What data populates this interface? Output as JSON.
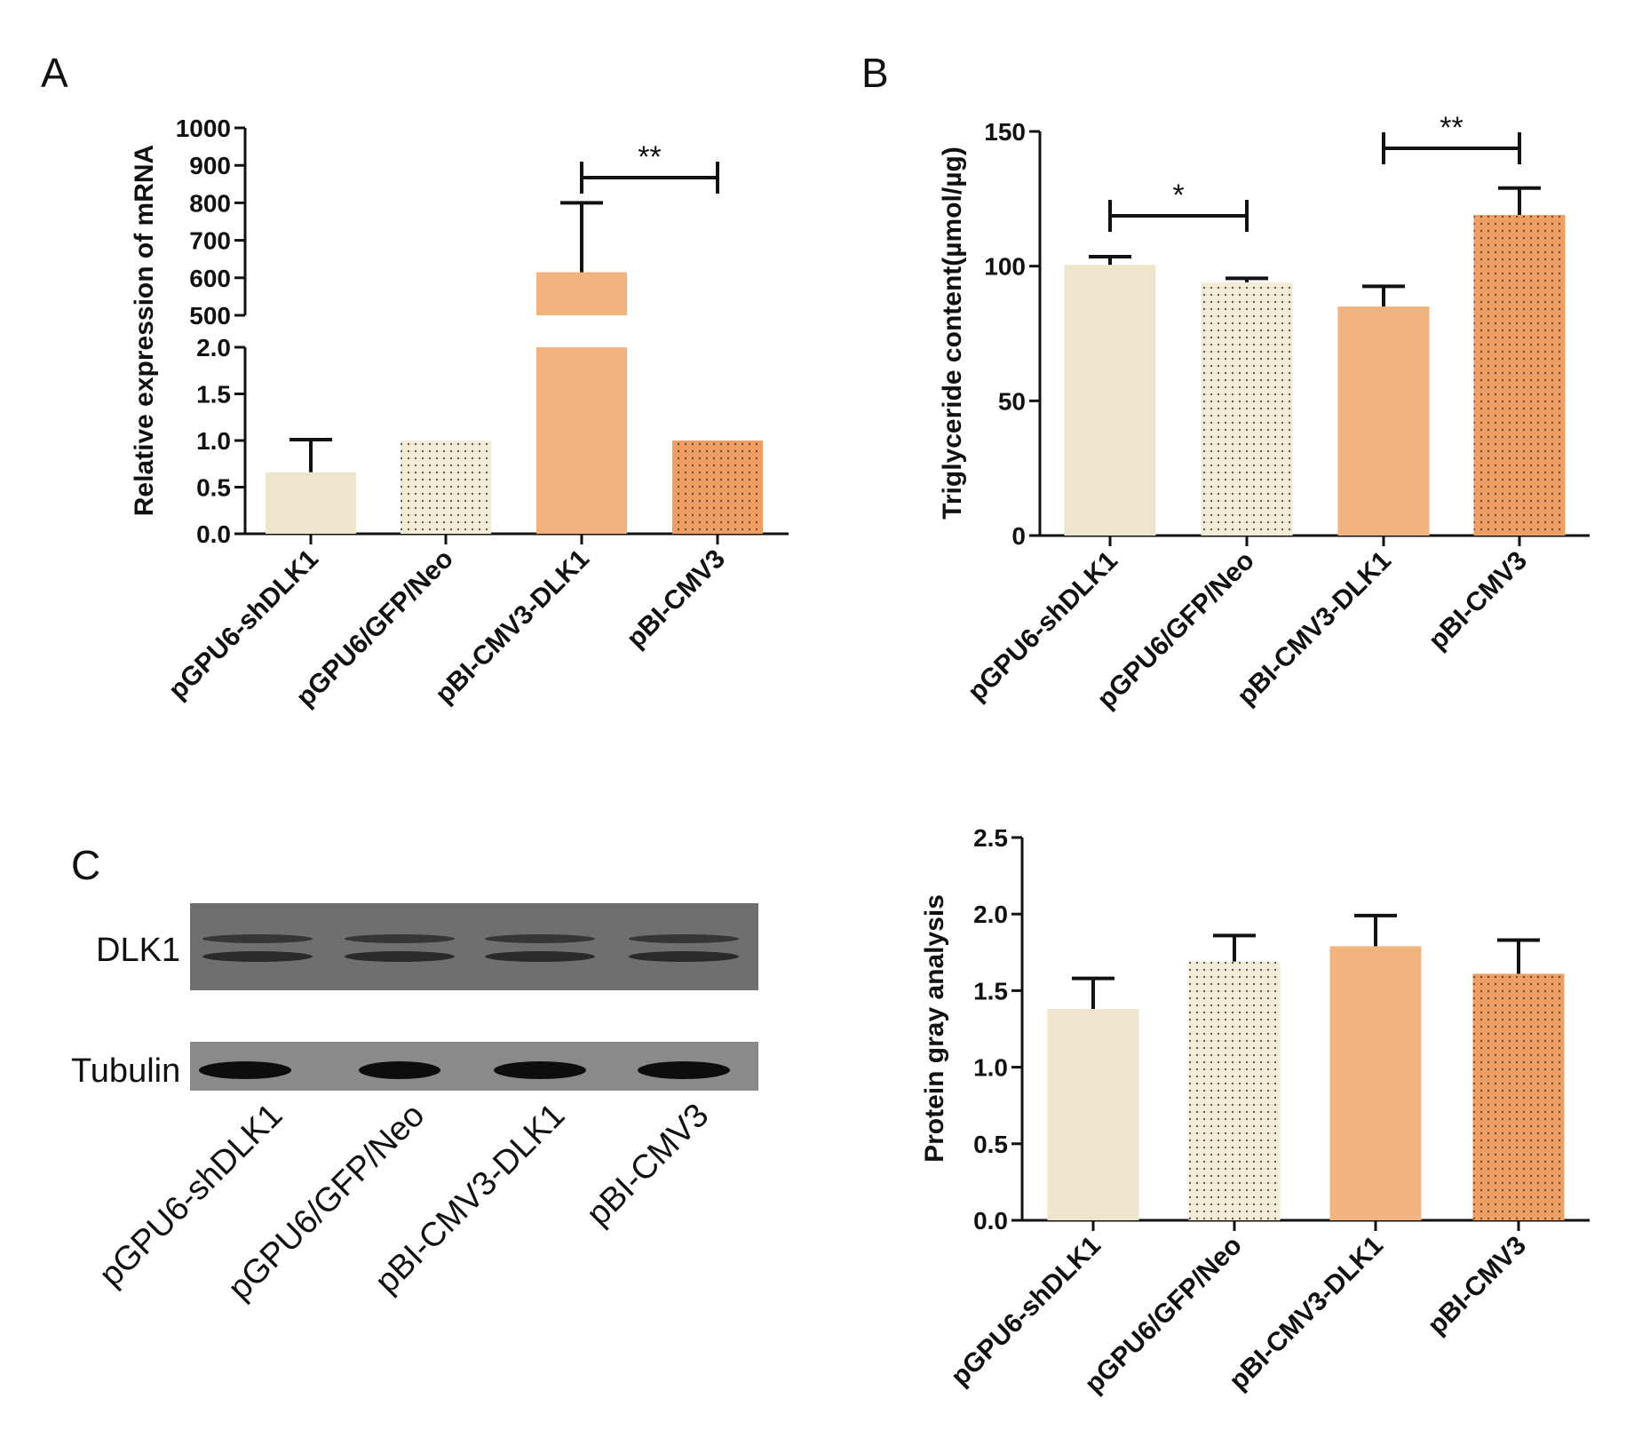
{
  "colors": {
    "beige": "#ede6cd",
    "beige_dotted": "#f1ecd8",
    "orange": "#f1b47e",
    "orange_dotted": "#ef9f63",
    "dots": "#6a5a40",
    "ink": "#111111",
    "blot_bg": "#6f6f6f",
    "blot_band": "#1e1e1e"
  },
  "chart_data": [
    {
      "panel": "A",
      "type": "bar",
      "ylabel": "Relative expression of mRNA",
      "categories": [
        "pGPU6-shDLK1",
        "pGPU6/GFP/Neo",
        "pBI-CMV3-DLK1",
        "pBI-CMV3"
      ],
      "values": [
        0.66,
        1.0,
        615,
        1.0
      ],
      "errors": [
        0.35,
        0,
        185,
        0
      ],
      "broken_axis": {
        "lower": {
          "range": [
            0,
            2.0
          ],
          "ticks": [
            "0.0",
            "0.5",
            "1.0",
            "1.5",
            "2.0"
          ]
        },
        "upper": {
          "range": [
            500,
            1000
          ],
          "ticks": [
            "500",
            "600",
            "700",
            "800",
            "900",
            "1000"
          ]
        }
      },
      "significance": [
        {
          "from": 2,
          "to": 3,
          "label": "**"
        }
      ]
    },
    {
      "panel": "B",
      "type": "bar",
      "ylabel": "Triglyceride content(µmol/µg)",
      "categories": [
        "pGPU6-shDLK1",
        "pGPU6/GFP/Neo",
        "pBI-CMV3-DLK1",
        "pBI-CMV3"
      ],
      "values": [
        100.5,
        94,
        85,
        119
      ],
      "errors": [
        3,
        1.5,
        7.5,
        10
      ],
      "ylim": [
        0,
        150
      ],
      "yticks": [
        "0",
        "50",
        "100",
        "150"
      ],
      "significance": [
        {
          "from": 0,
          "to": 1,
          "label": "*"
        },
        {
          "from": 2,
          "to": 3,
          "label": "**"
        }
      ]
    },
    {
      "panel": "C-right",
      "type": "bar",
      "ylabel": "Protein gray analysis",
      "categories": [
        "pGPU6-shDLK1",
        "pGPU6/GFP/Neo",
        "pBI-CMV3-DLK1",
        "pBI-CMV3"
      ],
      "values": [
        1.38,
        1.69,
        1.79,
        1.61
      ],
      "errors": [
        0.2,
        0.17,
        0.2,
        0.22
      ],
      "ylim": [
        0,
        2.5
      ],
      "yticks": [
        "0.0",
        "0.5",
        "1.0",
        "1.5",
        "2.0",
        "2.5"
      ]
    }
  ],
  "western_blot": {
    "panel": "C",
    "rows": [
      "DLK1",
      "Tubulin"
    ],
    "lanes": [
      "pGPU6-shDLK1",
      "pGPU6/GFP/Neo",
      "pBI-CMV3-DLK1",
      "pBI-CMV3"
    ]
  }
}
